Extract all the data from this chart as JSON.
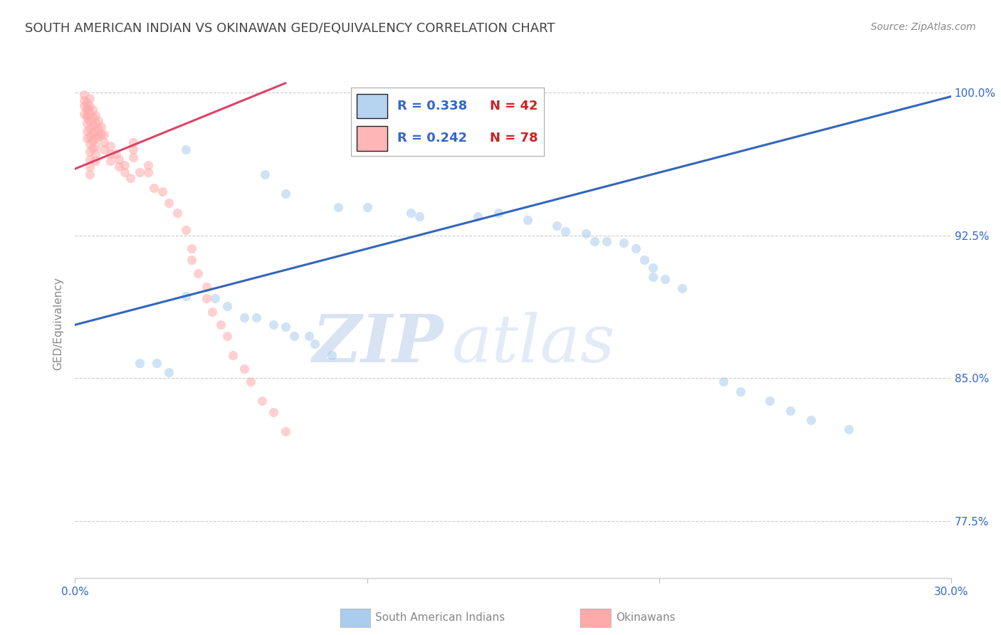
{
  "title": "SOUTH AMERICAN INDIAN VS OKINAWAN GED/EQUIVALENCY CORRELATION CHART",
  "source": "Source: ZipAtlas.com",
  "ylabel": "GED/Equivalency",
  "x_min": 0.0,
  "x_max": 0.3,
  "y_min": 0.745,
  "y_max": 1.012,
  "y_ticks": [
    0.775,
    0.85,
    0.925,
    1.0
  ],
  "y_tick_labels": [
    "77.5%",
    "85.0%",
    "92.5%",
    "100.0%"
  ],
  "legend_r_blue": "R = 0.338",
  "legend_n_blue": "N = 42",
  "legend_r_pink": "R = 0.242",
  "legend_n_pink": "N = 78",
  "blue_color": "#AACCEE",
  "pink_color": "#FFAAAA",
  "blue_line_color": "#3366BB",
  "pink_line_color": "#DD4466",
  "watermark_zip": "ZIP",
  "watermark_atlas": "atlas",
  "blue_scatter_x": [
    0.038,
    0.065,
    0.072,
    0.09,
    0.1,
    0.115,
    0.118,
    0.138,
    0.145,
    0.155,
    0.165,
    0.168,
    0.175,
    0.178,
    0.182,
    0.188,
    0.192,
    0.195,
    0.198,
    0.198,
    0.202,
    0.208,
    0.038,
    0.048,
    0.052,
    0.058,
    0.062,
    0.068,
    0.072,
    0.075,
    0.08,
    0.082,
    0.088,
    0.022,
    0.028,
    0.032,
    0.222,
    0.228,
    0.238,
    0.245,
    0.252,
    0.265
  ],
  "blue_scatter_y": [
    0.97,
    0.957,
    0.947,
    0.94,
    0.94,
    0.937,
    0.935,
    0.935,
    0.937,
    0.933,
    0.93,
    0.927,
    0.926,
    0.922,
    0.922,
    0.921,
    0.918,
    0.912,
    0.908,
    0.903,
    0.902,
    0.897,
    0.893,
    0.892,
    0.888,
    0.882,
    0.882,
    0.878,
    0.877,
    0.872,
    0.872,
    0.868,
    0.862,
    0.858,
    0.858,
    0.853,
    0.848,
    0.843,
    0.838,
    0.833,
    0.828,
    0.823
  ],
  "pink_scatter_x": [
    0.003,
    0.003,
    0.004,
    0.004,
    0.004,
    0.004,
    0.004,
    0.005,
    0.005,
    0.005,
    0.005,
    0.005,
    0.005,
    0.005,
    0.005,
    0.005,
    0.005,
    0.005,
    0.006,
    0.006,
    0.006,
    0.006,
    0.006,
    0.006,
    0.007,
    0.007,
    0.007,
    0.007,
    0.007,
    0.007,
    0.007,
    0.008,
    0.008,
    0.008,
    0.009,
    0.009,
    0.01,
    0.01,
    0.01,
    0.012,
    0.012,
    0.012,
    0.014,
    0.015,
    0.015,
    0.017,
    0.017,
    0.019,
    0.02,
    0.02,
    0.02,
    0.022,
    0.025,
    0.025,
    0.027,
    0.03,
    0.032,
    0.035,
    0.038,
    0.04,
    0.04,
    0.042,
    0.045,
    0.045,
    0.047,
    0.05,
    0.052,
    0.054,
    0.058,
    0.06,
    0.064,
    0.068,
    0.072,
    0.003,
    0.003,
    0.004,
    0.004,
    0.004
  ],
  "pink_scatter_y": [
    0.993,
    0.989,
    0.992,
    0.988,
    0.984,
    0.98,
    0.976,
    0.997,
    0.993,
    0.989,
    0.985,
    0.981,
    0.977,
    0.973,
    0.969,
    0.965,
    0.961,
    0.957,
    0.991,
    0.987,
    0.983,
    0.979,
    0.975,
    0.971,
    0.988,
    0.984,
    0.98,
    0.976,
    0.972,
    0.968,
    0.964,
    0.985,
    0.981,
    0.977,
    0.982,
    0.978,
    0.978,
    0.974,
    0.97,
    0.972,
    0.968,
    0.964,
    0.968,
    0.965,
    0.961,
    0.962,
    0.958,
    0.955,
    0.974,
    0.97,
    0.966,
    0.958,
    0.962,
    0.958,
    0.95,
    0.948,
    0.942,
    0.937,
    0.928,
    0.918,
    0.912,
    0.905,
    0.898,
    0.892,
    0.885,
    0.878,
    0.872,
    0.862,
    0.855,
    0.848,
    0.838,
    0.832,
    0.822,
    0.996,
    0.999,
    0.995,
    0.991,
    0.987
  ],
  "blue_line_x": [
    0.0,
    0.3
  ],
  "blue_line_y": [
    0.878,
    0.998
  ],
  "pink_line_x": [
    0.0,
    0.072
  ],
  "pink_line_y": [
    0.96,
    1.005
  ],
  "title_fontsize": 13,
  "source_fontsize": 10,
  "label_fontsize": 11,
  "tick_fontsize": 11,
  "scatter_size": 90,
  "scatter_alpha": 0.55,
  "grid_color": "#CCCCCC",
  "background_color": "#FFFFFF",
  "text_color_blue": "#3366CC",
  "text_color_red": "#CC2222",
  "text_color_gray": "#888888",
  "text_color_dark": "#444444",
  "legend_blue_text": "#3366CC",
  "legend_red_text": "#CC2222"
}
